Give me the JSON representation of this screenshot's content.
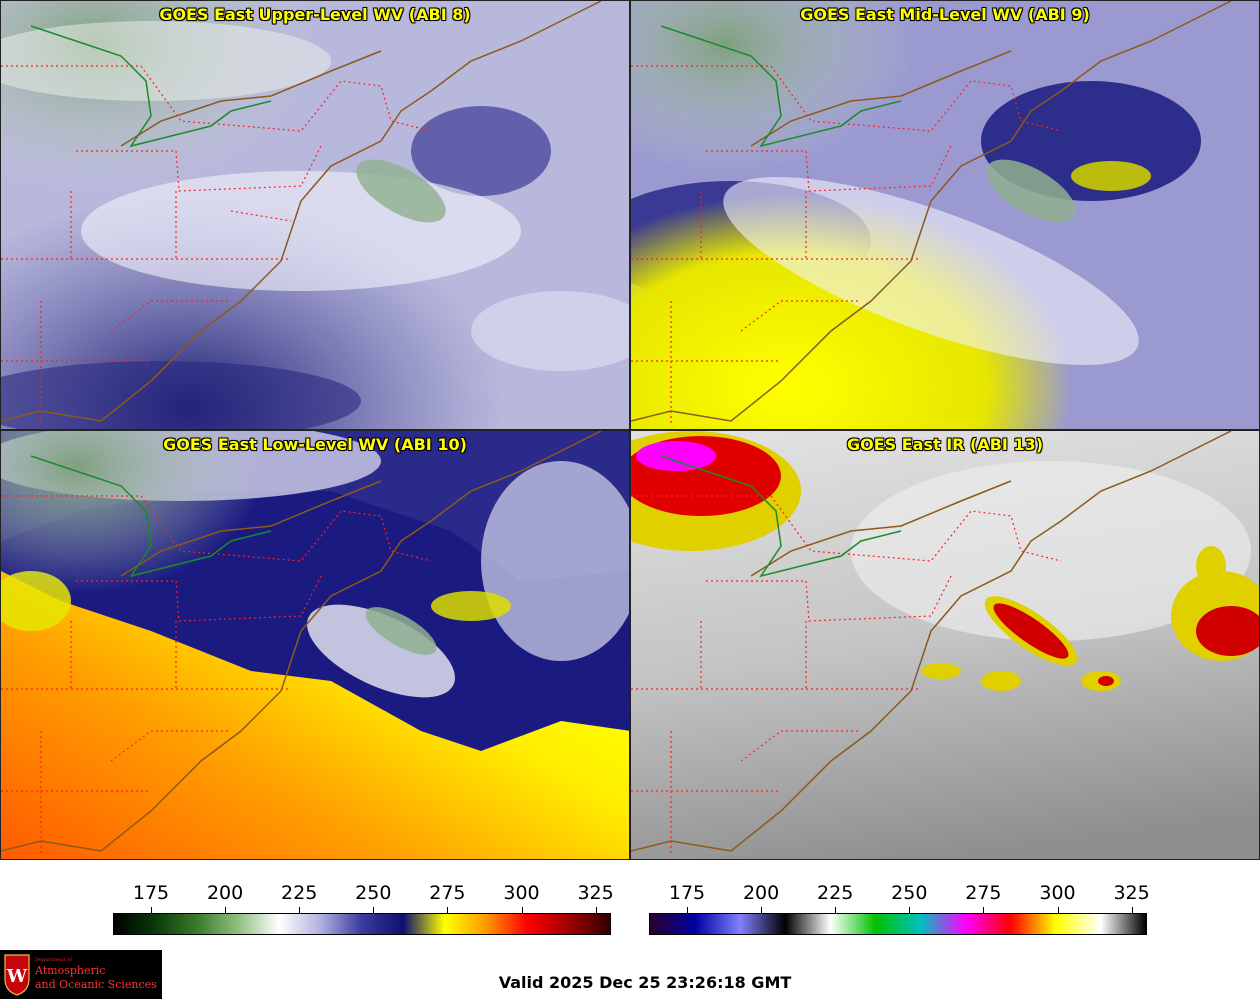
{
  "panels": [
    {
      "id": "p8",
      "title": "GOES East Upper-Level WV (ABI 8)"
    },
    {
      "id": "p9",
      "title": "GOES East Mid-Level WV (ABI 9)"
    },
    {
      "id": "p10",
      "title": "GOES East Low-Level WV (ABI 10)"
    },
    {
      "id": "p13",
      "title": "GOES East IR (ABI 13)"
    }
  ],
  "colorbars": {
    "wv": {
      "ticks": [
        "175",
        "200",
        "225",
        "250",
        "275",
        "300",
        "325"
      ],
      "colormap": "water-vapor",
      "colors": [
        "#000000",
        "#0a3a0a",
        "#3b7a2a",
        "#8fbf7f",
        "#ffffff",
        "#b0b0e0",
        "#3a3aa0",
        "#101070",
        "#ffff00",
        "#ff9900",
        "#ff0000",
        "#a00000",
        "#300000"
      ]
    },
    "ir": {
      "ticks": [
        "175",
        "200",
        "225",
        "250",
        "275",
        "300",
        "325"
      ],
      "colormap": "infrared",
      "colors": [
        "#2b0030",
        "#0000a0",
        "#8080ff",
        "#000000",
        "#ffffff",
        "#00c000",
        "#00c0c0",
        "#ff00ff",
        "#ff0000",
        "#ffff00",
        "#ffffff",
        "#000000"
      ]
    }
  },
  "logo": {
    "dept": "Department of",
    "line1": "Atmospheric",
    "line2": "and Oceanic Sciences",
    "letter": "W"
  },
  "valid_time": "Valid 2025 Dec 25 23:26:18 GMT",
  "colors": {
    "title_text": "#ffff00",
    "borders": "#ff2020",
    "coastline": "#8b5a1a",
    "divide": "#1a8a2a"
  }
}
